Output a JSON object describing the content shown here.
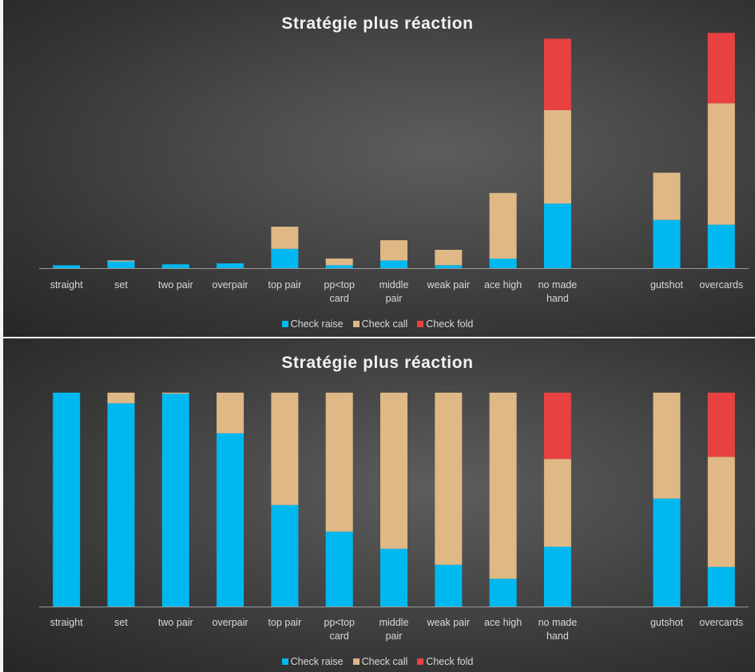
{
  "chart_data": [
    {
      "type": "bar",
      "stacked": true,
      "title": "Stratégie plus réaction",
      "categories": [
        [
          "straight"
        ],
        [
          "set"
        ],
        [
          "two pair"
        ],
        [
          "overpair"
        ],
        [
          "top pair"
        ],
        [
          "pp<top",
          "card"
        ],
        [
          "middle",
          "pair"
        ],
        [
          "weak pair"
        ],
        [
          "ace high"
        ],
        [
          "no made",
          "hand"
        ],
        [],
        [
          "gutshot"
        ],
        [
          "overcards"
        ]
      ],
      "series": [
        {
          "name": "Check raise",
          "color": "#00b8f0",
          "values": [
            3,
            7,
            4,
            5,
            20,
            3,
            8,
            3,
            10,
            67,
            0,
            50,
            45
          ]
        },
        {
          "name": "Check call",
          "color": "#dfb886",
          "values": [
            0,
            1,
            0,
            0,
            23,
            7,
            21,
            16,
            68,
            97,
            0,
            49,
            126
          ]
        },
        {
          "name": "Check fold",
          "color": "#e84141",
          "values": [
            0,
            0,
            0,
            0,
            0,
            0,
            0,
            0,
            0,
            74,
            0,
            0,
            73
          ]
        }
      ],
      "ylim": [
        0,
        245
      ],
      "legend_position": "bottom",
      "grid": false
    },
    {
      "type": "bar",
      "stacked": true,
      "percent": true,
      "title": "Stratégie plus réaction",
      "categories": [
        [
          "straight"
        ],
        [
          "set"
        ],
        [
          "two pair"
        ],
        [
          "overpair"
        ],
        [
          "top pair"
        ],
        [
          "pp<top",
          "card"
        ],
        [
          "middle",
          "pair"
        ],
        [
          "weak pair"
        ],
        [
          "ace high"
        ],
        [
          "no made",
          "hand"
        ],
        [],
        [
          "gutshot"
        ],
        [
          "overcards"
        ]
      ],
      "series": [
        {
          "name": "Check raise",
          "color": "#00b8f0",
          "values": [
            100,
            95,
            99.5,
            81,
            47.5,
            35,
            27,
            19.5,
            13,
            28,
            0,
            50.5,
            18.5
          ]
        },
        {
          "name": "Check call",
          "color": "#dfb886",
          "values": [
            0,
            5,
            0.5,
            19,
            52.5,
            65,
            73,
            80.5,
            87,
            41,
            0,
            49.5,
            51.5
          ]
        },
        {
          "name": "Check fold",
          "color": "#e84141",
          "values": [
            0,
            0,
            0,
            0,
            0,
            0,
            0,
            0,
            0,
            31,
            0,
            0,
            30
          ]
        }
      ],
      "ylim": [
        0,
        100
      ],
      "legend_position": "bottom",
      "grid": false
    }
  ]
}
